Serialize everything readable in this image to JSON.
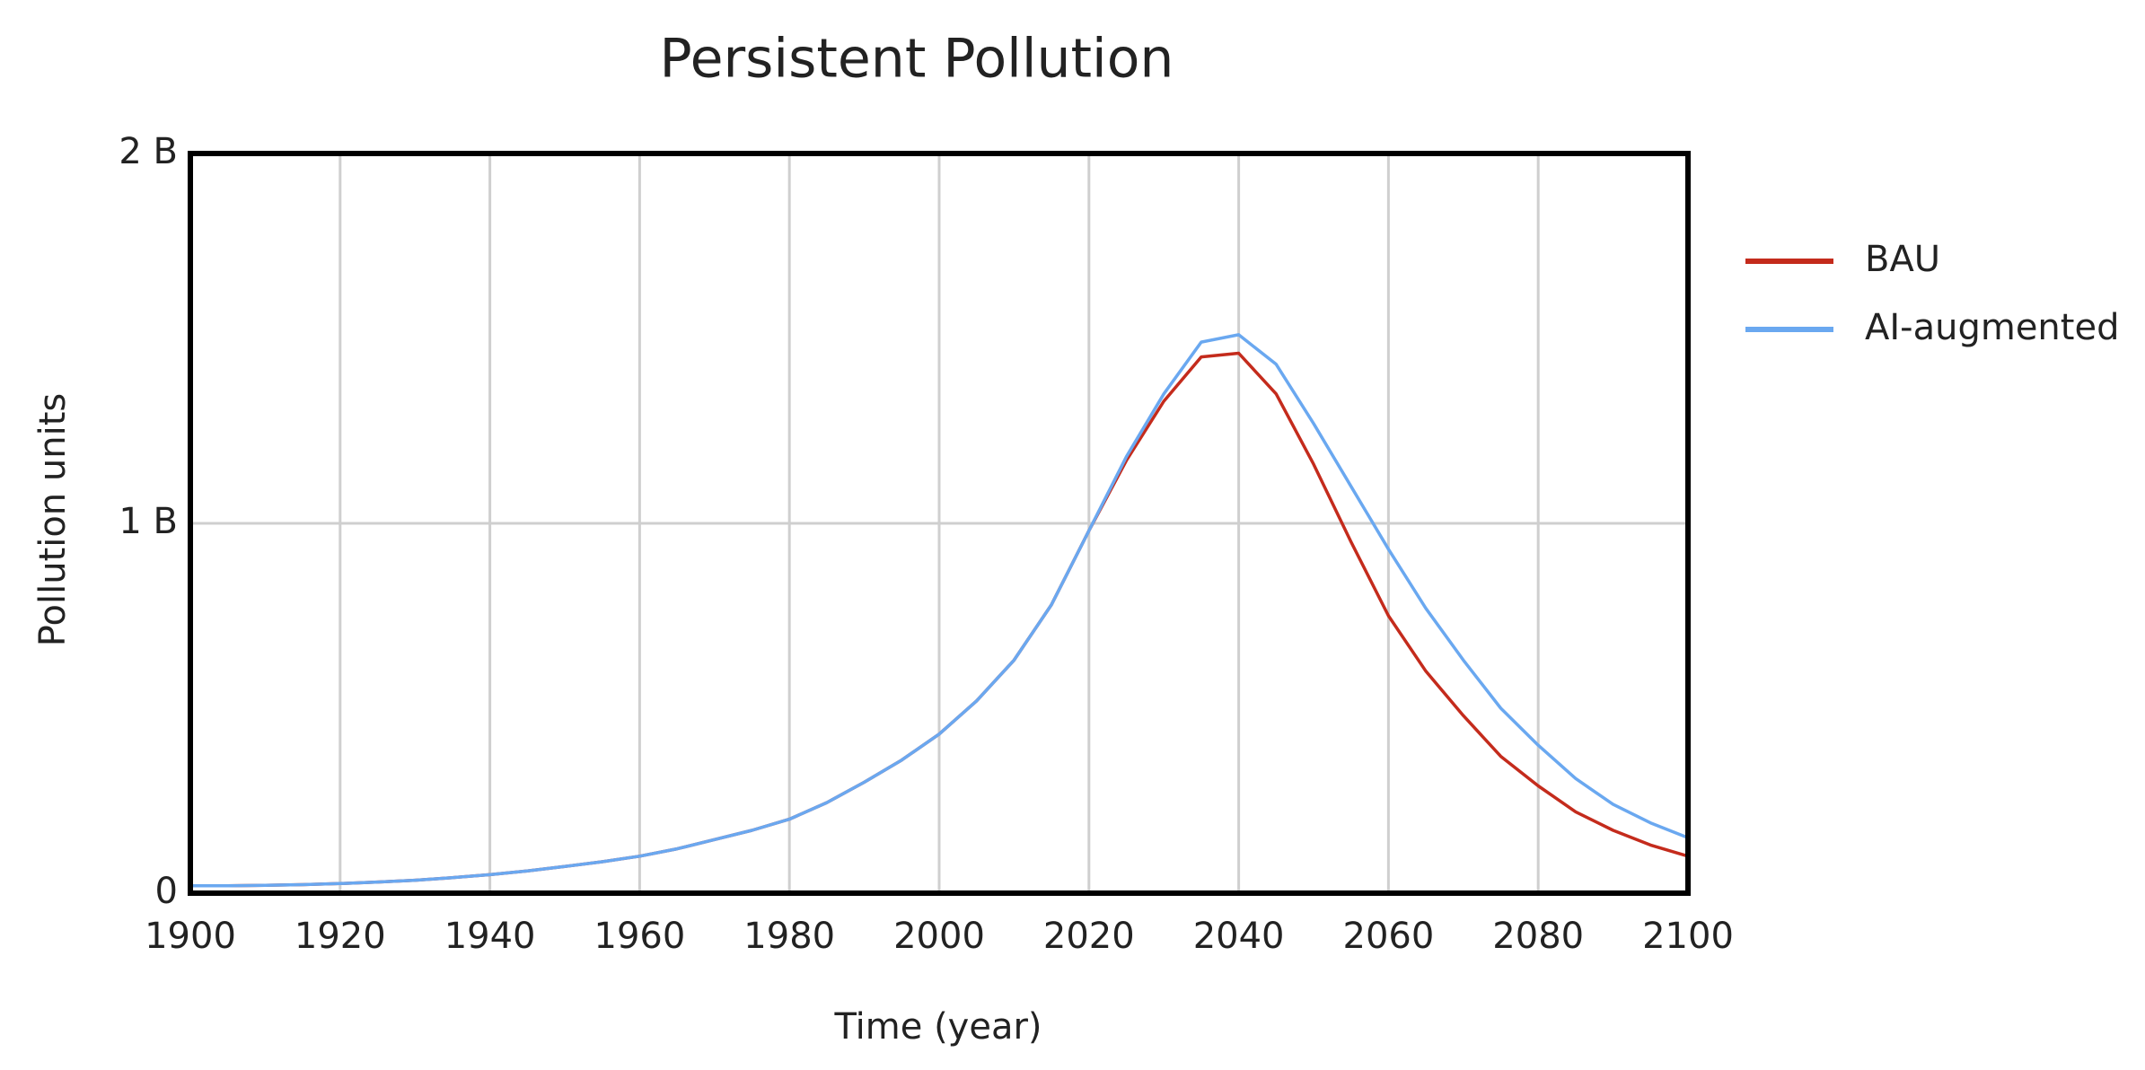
{
  "chart_data": {
    "type": "line",
    "title": "Persistent Pollution",
    "x_label": "Time (year)",
    "y_label": "Pollution units",
    "x": [
      1900,
      1905,
      1910,
      1915,
      1920,
      1925,
      1930,
      1935,
      1940,
      1945,
      1950,
      1955,
      1960,
      1965,
      1970,
      1975,
      1980,
      1985,
      1990,
      1995,
      2000,
      2005,
      2010,
      2015,
      2020,
      2025,
      2030,
      2035,
      2040,
      2045,
      2050,
      2055,
      2060,
      2065,
      2070,
      2075,
      2080,
      2085,
      2090,
      2095,
      2100
    ],
    "series": [
      {
        "name": "BAU",
        "color": "#c42b1c",
        "values": [
          20000000,
          20000000,
          21000000,
          23000000,
          26000000,
          30000000,
          35000000,
          42000000,
          50000000,
          60000000,
          72000000,
          85000000,
          100000000,
          120000000,
          145000000,
          170000000,
          200000000,
          245000000,
          300000000,
          360000000,
          430000000,
          520000000,
          630000000,
          780000000,
          980000000,
          1170000000,
          1330000000,
          1450000000,
          1460000000,
          1350000000,
          1160000000,
          950000000,
          750000000,
          600000000,
          480000000,
          370000000,
          290000000,
          220000000,
          170000000,
          130000000,
          100000000
        ]
      },
      {
        "name": "AI-augmented",
        "color": "#6aa8f0",
        "values": [
          20000000,
          20000000,
          21000000,
          23000000,
          26000000,
          30000000,
          35000000,
          42000000,
          50000000,
          60000000,
          72000000,
          85000000,
          100000000,
          120000000,
          145000000,
          170000000,
          200000000,
          245000000,
          300000000,
          360000000,
          430000000,
          520000000,
          630000000,
          780000000,
          980000000,
          1180000000,
          1350000000,
          1490000000,
          1510000000,
          1430000000,
          1270000000,
          1100000000,
          930000000,
          770000000,
          630000000,
          500000000,
          400000000,
          310000000,
          240000000,
          190000000,
          150000000
        ]
      }
    ],
    "xlim": [
      1900,
      2100
    ],
    "xticks": [
      1900,
      1920,
      1940,
      1960,
      1980,
      2000,
      2020,
      2040,
      2060,
      2080,
      2100
    ],
    "ylim": [
      0,
      2000000000
    ],
    "yticks": [
      0,
      {
        "value": 1000000000,
        "label": "1 B"
      },
      {
        "value": 2000000000,
        "label": "2 B"
      }
    ],
    "grid": true,
    "legend": "right"
  }
}
